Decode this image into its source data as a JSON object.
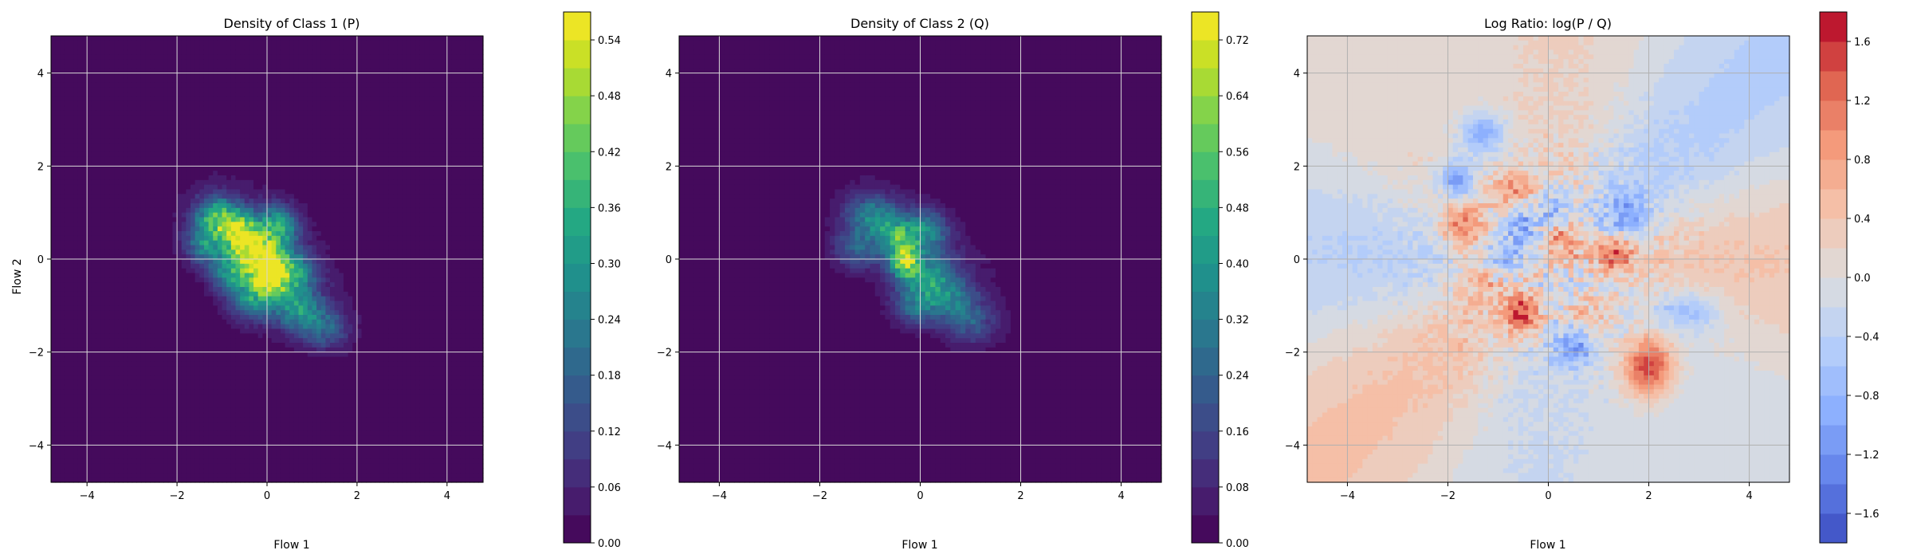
{
  "chart_data": [
    {
      "type": "heatmap",
      "title": "Density of Class 1 (P)",
      "xlabel": "Flow 1",
      "ylabel": "Flow 2",
      "xlim": [
        -4.8,
        4.8
      ],
      "ylim": [
        -4.8,
        4.8
      ],
      "xticks": [
        -4,
        -2,
        0,
        2,
        4
      ],
      "yticks": [
        -4,
        -2,
        0,
        2,
        4
      ],
      "grid": true,
      "colormap": "viridis",
      "colorbar": {
        "min": 0.0,
        "max": 0.57,
        "ticks": [
          0.0,
          0.06,
          0.12,
          0.18,
          0.24,
          0.3,
          0.36,
          0.42,
          0.48,
          0.54
        ],
        "tick_labels": [
          "0.00",
          "0.06",
          "0.12",
          "0.18",
          "0.24",
          "0.30",
          "0.36",
          "0.42",
          "0.48",
          "0.54"
        ],
        "levels": 19
      },
      "blobs": [
        {
          "x": -1.1,
          "y": 0.9,
          "sx": 0.35,
          "sy": 0.3,
          "peak": 0.42
        },
        {
          "x": -0.6,
          "y": 0.55,
          "sx": 0.3,
          "sy": 0.3,
          "peak": 0.5
        },
        {
          "x": -0.2,
          "y": 0.15,
          "sx": 0.35,
          "sy": 0.3,
          "peak": 0.45
        },
        {
          "x": 0.0,
          "y": -0.35,
          "sx": 0.3,
          "sy": 0.3,
          "peak": 0.55
        },
        {
          "x": 0.25,
          "y": 0.7,
          "sx": 0.3,
          "sy": 0.3,
          "peak": 0.4
        },
        {
          "x": 0.5,
          "y": -0.3,
          "sx": 0.35,
          "sy": 0.3,
          "peak": 0.38
        },
        {
          "x": 0.7,
          "y": -1.1,
          "sx": 0.35,
          "sy": 0.3,
          "peak": 0.33
        },
        {
          "x": 1.3,
          "y": -1.5,
          "sx": 0.35,
          "sy": 0.3,
          "peak": 0.2
        },
        {
          "x": -1.4,
          "y": 0.3,
          "sx": 0.3,
          "sy": 0.3,
          "peak": 0.28
        },
        {
          "x": -0.3,
          "y": -0.9,
          "sx": 0.35,
          "sy": 0.3,
          "peak": 0.3
        },
        {
          "x": -0.8,
          "y": -0.3,
          "sx": 0.3,
          "sy": 0.3,
          "peak": 0.32
        }
      ]
    },
    {
      "type": "heatmap",
      "title": "Density of Class 2 (Q)",
      "xlabel": "Flow 1",
      "ylabel": "",
      "xlim": [
        -4.8,
        4.8
      ],
      "ylim": [
        -4.8,
        4.8
      ],
      "xticks": [
        -4,
        -2,
        0,
        2,
        4
      ],
      "yticks": [
        -4,
        -2,
        0,
        2,
        4
      ],
      "grid": true,
      "colormap": "viridis",
      "colorbar": {
        "min": 0.0,
        "max": 0.76,
        "ticks": [
          0.0,
          0.08,
          0.16,
          0.24,
          0.32,
          0.4,
          0.48,
          0.56,
          0.64,
          0.72
        ],
        "tick_labels": [
          "0.00",
          "0.08",
          "0.16",
          "0.24",
          "0.32",
          "0.40",
          "0.48",
          "0.56",
          "0.64",
          "0.72"
        ],
        "levels": 19
      },
      "blobs": [
        {
          "x": -1.0,
          "y": 0.95,
          "sx": 0.35,
          "sy": 0.3,
          "peak": 0.35
        },
        {
          "x": -0.5,
          "y": 0.5,
          "sx": 0.3,
          "sy": 0.3,
          "peak": 0.45
        },
        {
          "x": -0.3,
          "y": -0.05,
          "sx": 0.2,
          "sy": 0.25,
          "peak": 0.72
        },
        {
          "x": 0.1,
          "y": 0.6,
          "sx": 0.3,
          "sy": 0.3,
          "peak": 0.38
        },
        {
          "x": 0.2,
          "y": -0.4,
          "sx": 0.35,
          "sy": 0.3,
          "peak": 0.4
        },
        {
          "x": 0.6,
          "y": -0.9,
          "sx": 0.35,
          "sy": 0.3,
          "peak": 0.3
        },
        {
          "x": 1.0,
          "y": -1.4,
          "sx": 0.35,
          "sy": 0.3,
          "peak": 0.22
        },
        {
          "x": -1.3,
          "y": 0.2,
          "sx": 0.3,
          "sy": 0.3,
          "peak": 0.25
        },
        {
          "x": -0.1,
          "y": -1.0,
          "sx": 0.3,
          "sy": 0.3,
          "peak": 0.3
        }
      ]
    },
    {
      "type": "heatmap",
      "title": "Log Ratio: log(P / Q)",
      "xlabel": "Flow 1",
      "ylabel": "",
      "xlim": [
        -4.8,
        4.8
      ],
      "ylim": [
        -4.8,
        4.8
      ],
      "xticks": [
        -4,
        -2,
        0,
        2,
        4
      ],
      "yticks": [
        -4,
        -2,
        0,
        2,
        4
      ],
      "grid": true,
      "colormap": "coolwarm",
      "colorbar": {
        "min": -1.8,
        "max": 1.8,
        "ticks": [
          -1.6,
          -1.2,
          -0.8,
          -0.4,
          0.0,
          0.4,
          0.8,
          1.2,
          1.6
        ],
        "tick_labels": [
          "−1.6",
          "−1.2",
          "−0.8",
          "−0.4",
          "0.0",
          "0.4",
          "0.8",
          "1.2",
          "1.6"
        ],
        "levels": 18
      },
      "features": [
        {
          "x": -1.7,
          "y": 0.7,
          "sx": 0.3,
          "sy": 0.35,
          "amp": 1.2
        },
        {
          "x": -0.7,
          "y": 1.5,
          "sx": 0.3,
          "sy": 0.25,
          "amp": 0.9
        },
        {
          "x": -0.5,
          "y": -1.2,
          "sx": 0.25,
          "sy": 0.3,
          "amp": 1.5
        },
        {
          "x": 0.3,
          "y": 0.4,
          "sx": 0.3,
          "sy": 0.3,
          "amp": 1.0
        },
        {
          "x": 1.3,
          "y": 0.1,
          "sx": 0.25,
          "sy": 0.25,
          "amp": 1.1
        },
        {
          "x": 2.0,
          "y": -2.3,
          "sx": 0.35,
          "sy": 0.45,
          "amp": 1.6
        },
        {
          "x": -1.3,
          "y": -0.4,
          "sx": 0.35,
          "sy": 0.3,
          "amp": 0.7
        },
        {
          "x": 0.8,
          "y": -1.2,
          "sx": 0.3,
          "sy": 0.3,
          "amp": 0.6
        },
        {
          "x": -1.3,
          "y": 2.7,
          "sx": 0.3,
          "sy": 0.3,
          "amp": -1.0
        },
        {
          "x": -1.8,
          "y": 1.7,
          "sx": 0.25,
          "sy": 0.3,
          "amp": -1.2
        },
        {
          "x": -0.5,
          "y": 0.7,
          "sx": 0.3,
          "sy": 0.3,
          "amp": -0.9
        },
        {
          "x": 0.5,
          "y": -1.9,
          "sx": 0.3,
          "sy": 0.3,
          "amp": -1.0
        },
        {
          "x": 1.6,
          "y": 0.9,
          "sx": 0.3,
          "sy": 0.3,
          "amp": -0.9
        },
        {
          "x": 2.8,
          "y": -1.1,
          "sx": 0.45,
          "sy": 0.3,
          "amp": -0.8
        },
        {
          "x": 0.1,
          "y": 1.1,
          "sx": 0.25,
          "sy": 0.3,
          "amp": -0.8
        },
        {
          "x": -0.9,
          "y": -0.1,
          "sx": 0.3,
          "sy": 0.3,
          "amp": -0.6
        }
      ]
    }
  ]
}
